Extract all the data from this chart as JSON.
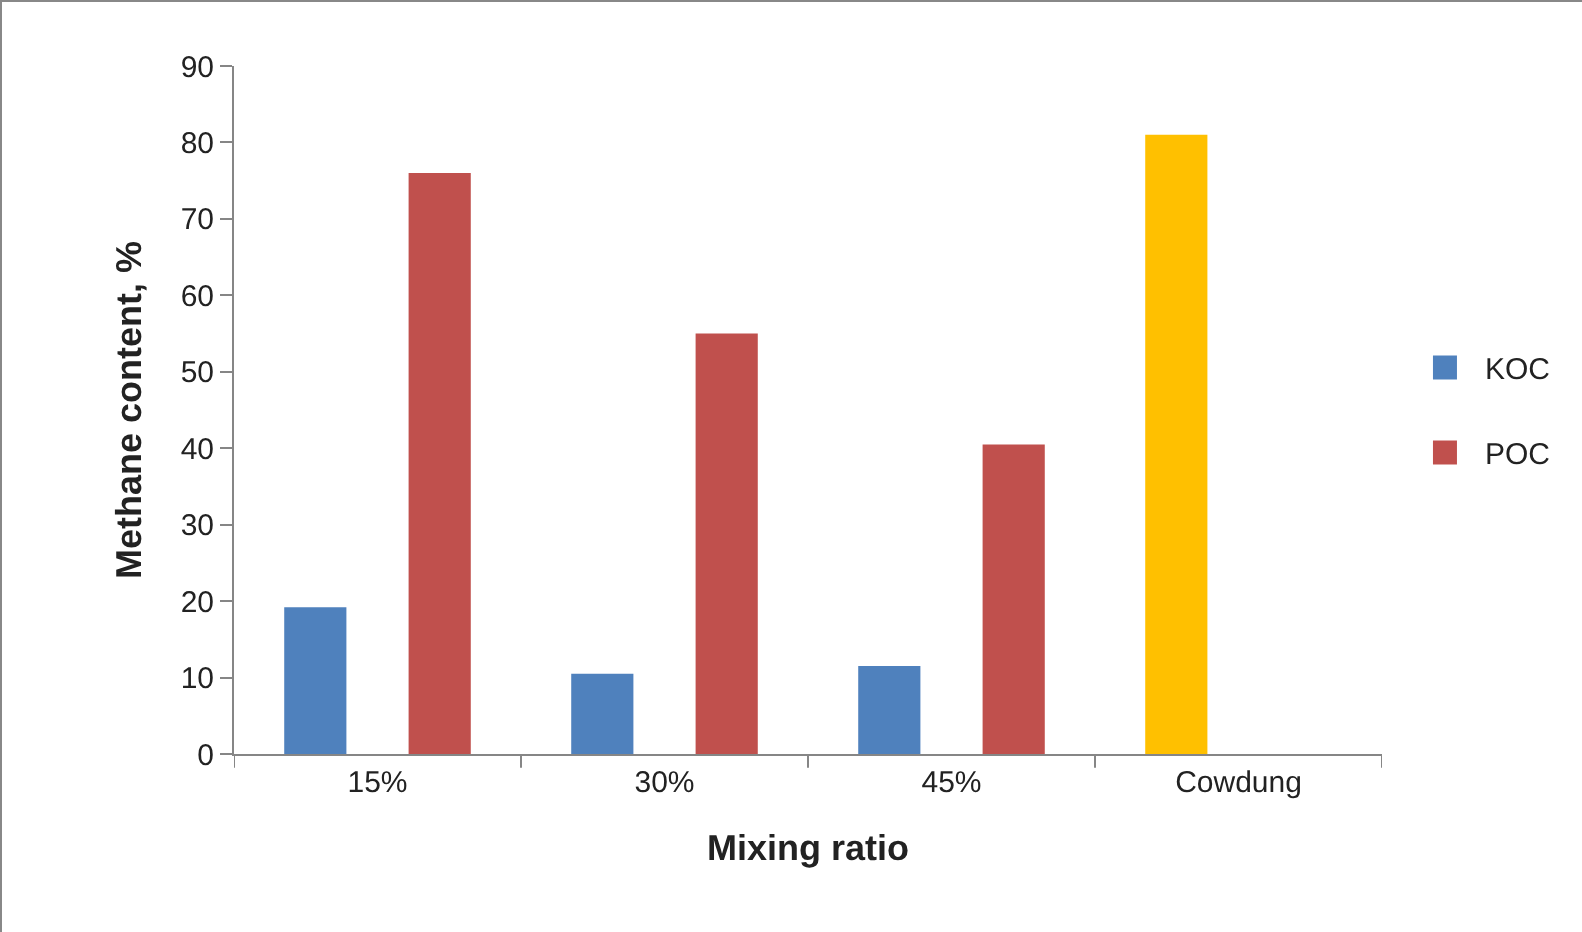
{
  "chart_data": {
    "type": "bar",
    "xlabel": "Mixing ratio",
    "ylabel": "Methane content, %",
    "categories": [
      "15%",
      "30%",
      "45%",
      "Cowdung"
    ],
    "series": [
      {
        "name": "KOC",
        "color": "#4f81bd",
        "colors": [
          "#4f81bd",
          "#4f81bd",
          "#4f81bd",
          "#ffc000"
        ],
        "values": [
          19.2,
          10.5,
          11.5,
          81
        ]
      },
      {
        "name": "POC",
        "color": "#c0504d",
        "values": [
          76,
          55,
          40.5,
          null
        ]
      }
    ],
    "ylim": [
      0,
      90
    ],
    "yticks": [
      0,
      10,
      20,
      30,
      40,
      50,
      60,
      70,
      80,
      90
    ],
    "grid": false,
    "legend": "right"
  }
}
